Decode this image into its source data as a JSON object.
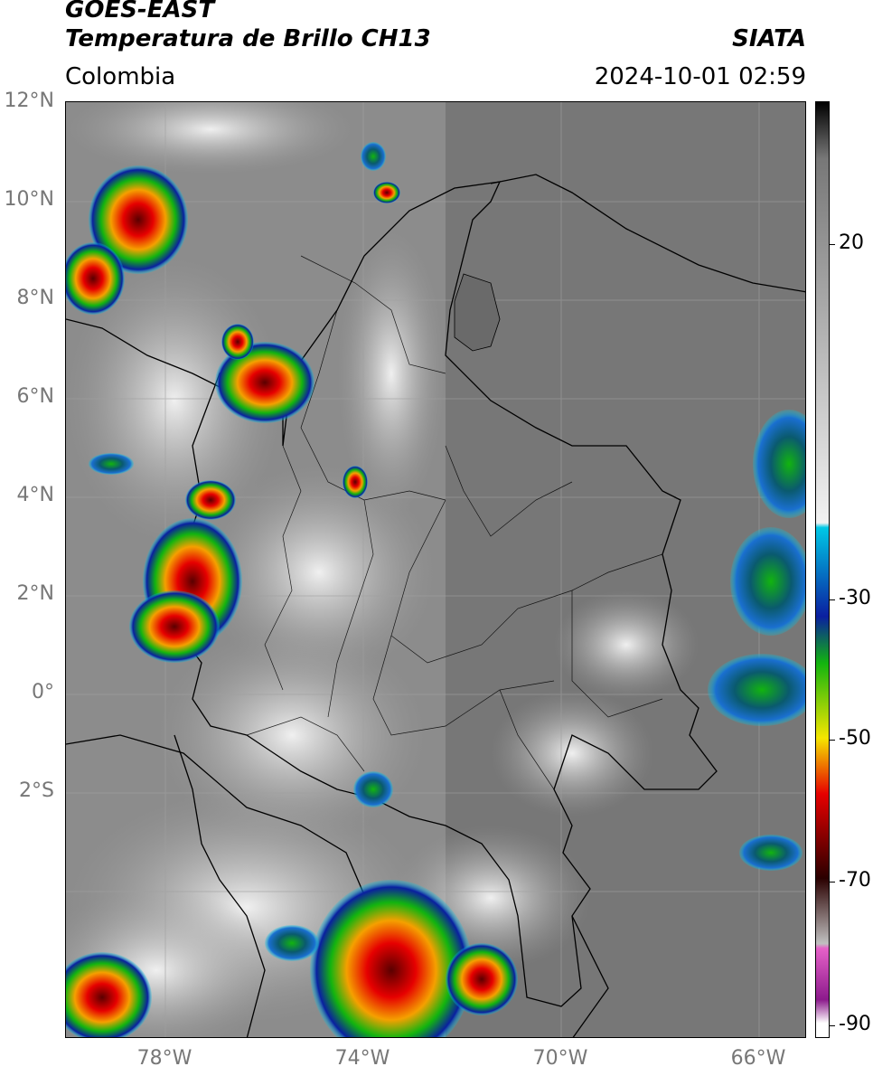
{
  "header": {
    "satellite": "GOES-EAST",
    "product": "Temperatura de Brillo CH13",
    "region": "Colombia",
    "agency": "SIATA",
    "datetime": "2024-10-01 02:59"
  },
  "map": {
    "lat_labels": [
      "12°N",
      "10°N",
      "8°N",
      "6°N",
      "4°N",
      "2°N",
      "0°",
      "2°S"
    ],
    "lon_labels": [
      "78°W",
      "74°W",
      "70°W",
      "66°W"
    ],
    "extent": {
      "lon_min": -80,
      "lon_max": -65,
      "lat_min": -5,
      "lat_max": 14
    }
  },
  "colorbar": {
    "labels": [
      "20",
      "-30",
      "-50",
      "-70",
      "-90"
    ],
    "colors": [
      "#000000",
      "#777777",
      "#f2f2f2",
      "#00c8e6",
      "#0a1fa0",
      "#12b40f",
      "#f5e600",
      "#e60000",
      "#2a0000",
      "#c0c0c0",
      "#e661c8",
      "#8c1a8c",
      "#ffffff"
    ]
  }
}
